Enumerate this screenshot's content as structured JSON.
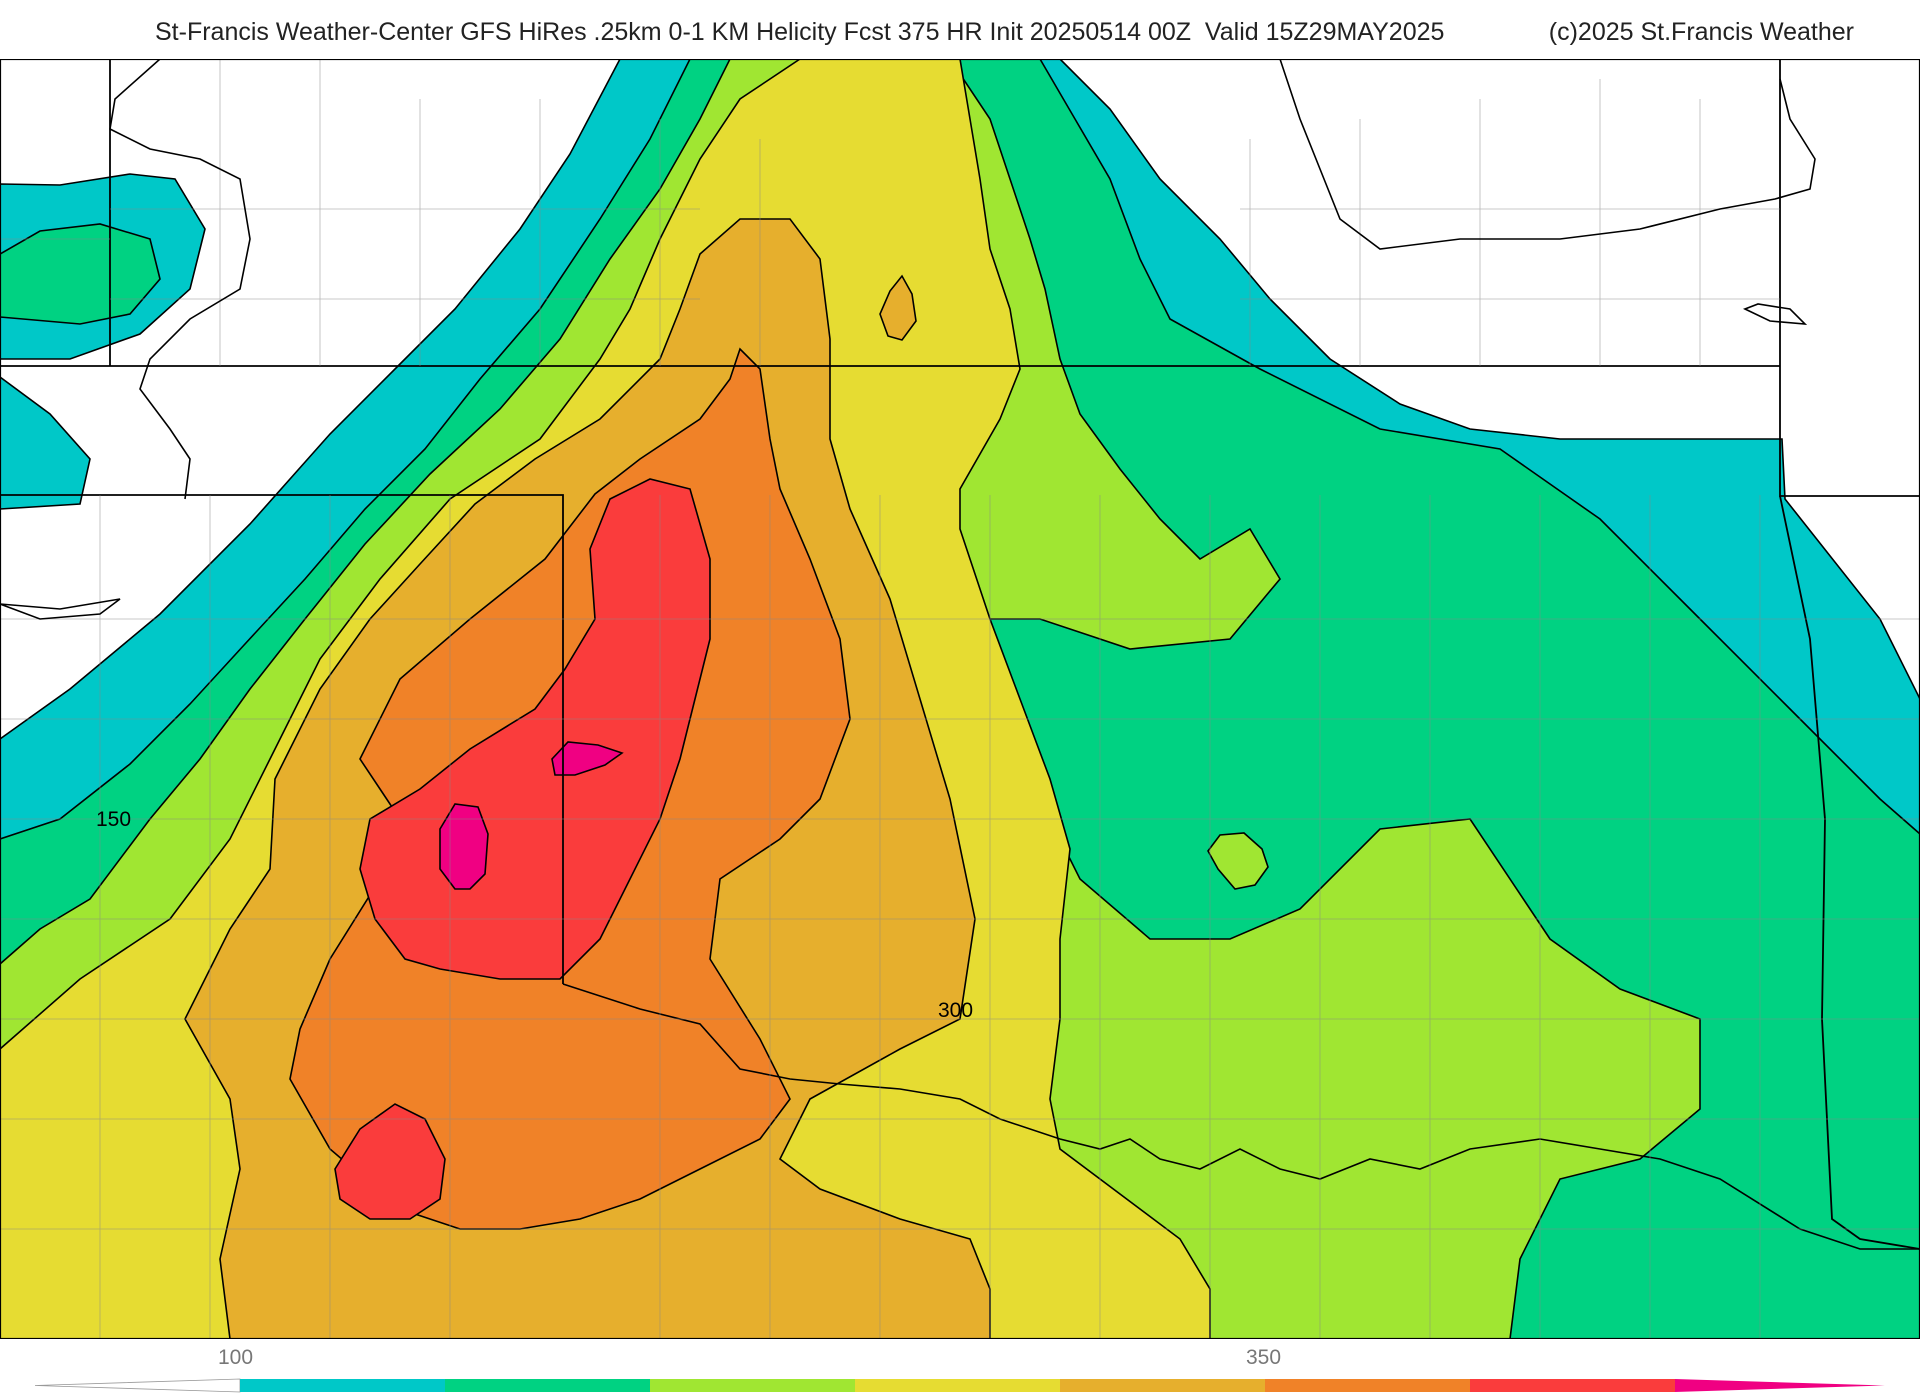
{
  "header": {
    "title": "St-Francis Weather-Center GFS HiRes .25km 0-1 KM Helicity Fcst 375 HR Init 20250514 00Z  Valid 15Z29MAY2025",
    "copyright": "(c)2025 St.Francis Weather"
  },
  "map": {
    "field": "0-1 KM Helicity",
    "contour_labels": [
      "150",
      "300"
    ]
  },
  "legend": {
    "tick_labels": [
      "100",
      "350"
    ],
    "colors": [
      "#00c8c8",
      "#00d282",
      "#a0e632",
      "#e6dc32",
      "#e6af2d",
      "#f08228",
      "#fa3c3c",
      "#f00082"
    ]
  }
}
